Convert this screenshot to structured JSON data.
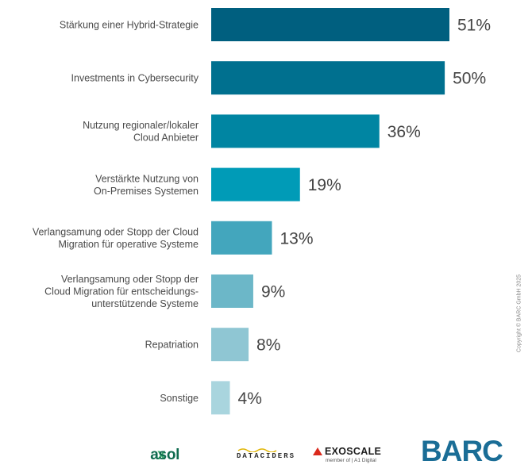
{
  "chart_data": {
    "type": "bar",
    "orientation": "horizontal",
    "categories": [
      [
        "Stärkung einer Hybrid-Strategie"
      ],
      [
        "Investments in Cybersecurity"
      ],
      [
        "Nutzung regionaler/lokaler",
        "Cloud Anbieter"
      ],
      [
        "Verstärkte Nutzung von",
        "On-Premises Systemen"
      ],
      [
        "Verlangsamung oder Stopp der Cloud",
        "Migration für operative Systeme"
      ],
      [
        "Verlangsamung oder Stopp der",
        "Cloud Migration für entscheidungs-",
        "unterstützende Systeme"
      ],
      [
        "Repatriation"
      ],
      [
        "Sonstige"
      ]
    ],
    "values": [
      51,
      50,
      36,
      19,
      13,
      9,
      8,
      4
    ],
    "value_labels": [
      "51%",
      "50%",
      "36%",
      "19%",
      "13%",
      "9%",
      "8%",
      "4%"
    ],
    "colors": [
      "#005f7f",
      "#00708f",
      "#0085a2",
      "#009bb7",
      "#43a6bd",
      "#6cb7c8",
      "#8fc6d3",
      "#a9d5de"
    ],
    "xlim": [
      0,
      51
    ],
    "grid": false,
    "legend": "none"
  },
  "copyright": "Copyright © BARC GmbH 2025",
  "logos": {
    "exasol": {
      "x": "x",
      "rest": "asol"
    },
    "dataciders": "DATACIDERS",
    "exoscale": {
      "name": "EXOSCALE",
      "sub": "member of | A1 Digital"
    },
    "barc": "BARC"
  }
}
